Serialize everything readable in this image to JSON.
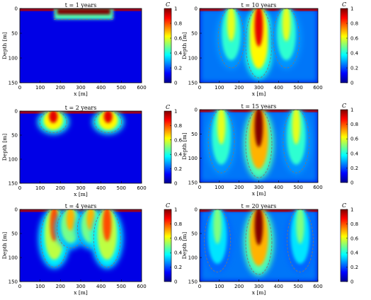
{
  "chart_data": [
    {
      "type": "heatmap",
      "title": "t = 1 years",
      "xlabel": "x [m]",
      "ylabel": "Depth [m]",
      "xlim": [
        0,
        600
      ],
      "ylim": [
        150,
        0
      ],
      "xticks": [
        "0",
        "100",
        "200",
        "300",
        "400",
        "500",
        "600"
      ],
      "yticks": [
        "0",
        "50",
        "100",
        "150"
      ],
      "colorbar": {
        "label": "C",
        "ticks": [
          "0",
          "0.2",
          "0.4",
          "0.6",
          "0.8",
          "1"
        ],
        "range": [
          0,
          1
        ]
      },
      "plumes": [
        {
          "x": 170,
          "x_end": 460,
          "depth": 22,
          "peak": 1.0
        }
      ]
    },
    {
      "type": "heatmap",
      "title": "t = 10 years",
      "xlabel": "x [m]",
      "ylabel": "Depth [m]",
      "xlim": [
        0,
        600
      ],
      "ylim": [
        150,
        0
      ],
      "xticks": [
        "0",
        "100",
        "200",
        "300",
        "400",
        "500",
        "600"
      ],
      "yticks": [
        "0",
        "50",
        "100",
        "150"
      ],
      "colorbar": {
        "label": "C",
        "ticks": [
          "0",
          "0.2",
          "0.4",
          "0.6",
          "0.8",
          "1"
        ],
        "range": [
          0,
          1
        ]
      },
      "plumes": [
        {
          "x": 300,
          "depth": 140,
          "peak": 0.9
        },
        {
          "x": 160,
          "depth": 120,
          "peak": 0.6
        },
        {
          "x": 440,
          "depth": 120,
          "peak": 0.6
        }
      ]
    },
    {
      "type": "heatmap",
      "title": "t = 2 years",
      "xlabel": "x [m]",
      "ylabel": "Depth [m]",
      "xlim": [
        0,
        600
      ],
      "ylim": [
        150,
        0
      ],
      "xticks": [
        "0",
        "100",
        "200",
        "300",
        "400",
        "500",
        "600"
      ],
      "yticks": [
        "0",
        "50",
        "100",
        "150"
      ],
      "colorbar": {
        "label": "C",
        "ticks": [
          "0",
          "0.2",
          "0.4",
          "0.6",
          "0.8",
          "1"
        ],
        "range": [
          0,
          1
        ]
      },
      "plumes": [
        {
          "x": 165,
          "depth": 45,
          "peak": 0.9
        },
        {
          "x": 435,
          "depth": 45,
          "peak": 0.9
        }
      ]
    },
    {
      "type": "heatmap",
      "title": "t = 15 years",
      "xlabel": "x [m]",
      "ylabel": "Depth [m]",
      "xlim": [
        0,
        600
      ],
      "ylim": [
        150,
        0
      ],
      "xticks": [
        "0",
        "100",
        "200",
        "300",
        "400",
        "500",
        "600"
      ],
      "yticks": [
        "0",
        "50",
        "100",
        "150"
      ],
      "colorbar": {
        "label": "C",
        "ticks": [
          "0",
          "0.2",
          "0.4",
          "0.6",
          "0.8",
          "1"
        ],
        "range": [
          0,
          1
        ]
      },
      "plumes": [
        {
          "x": 300,
          "depth": 140,
          "peak": 1.0
        },
        {
          "x": 110,
          "depth": 130,
          "peak": 0.6
        },
        {
          "x": 490,
          "depth": 130,
          "peak": 0.6
        }
      ]
    },
    {
      "type": "heatmap",
      "title": "t = 4 years",
      "xlabel": "x [m]",
      "ylabel": "Depth [m]",
      "xlim": [
        0,
        600
      ],
      "ylim": [
        150,
        0
      ],
      "xticks": [
        "0",
        "100",
        "200",
        "300",
        "400",
        "500",
        "600"
      ],
      "yticks": [
        "0",
        "50",
        "100",
        "150"
      ],
      "colorbar": {
        "label": "C",
        "ticks": [
          "0",
          "0.2",
          "0.4",
          "0.6",
          "0.8",
          "1"
        ],
        "range": [
          0,
          1
        ]
      },
      "plumes": [
        {
          "x": 170,
          "depth": 120,
          "peak": 0.8
        },
        {
          "x": 250,
          "depth": 80,
          "peak": 0.7
        },
        {
          "x": 350,
          "depth": 80,
          "peak": 0.7
        },
        {
          "x": 430,
          "depth": 120,
          "peak": 0.8
        }
      ]
    },
    {
      "type": "heatmap",
      "title": "t = 20 years",
      "xlabel": "x [m]",
      "ylabel": "Depth [m]",
      "xlim": [
        0,
        600
      ],
      "ylim": [
        150,
        0
      ],
      "xticks": [
        "0",
        "100",
        "200",
        "300",
        "400",
        "500",
        "600"
      ],
      "yticks": [
        "0",
        "50",
        "100",
        "150"
      ],
      "colorbar": {
        "label": "C",
        "ticks": [
          "0",
          "0.2",
          "0.4",
          "0.6",
          "0.8",
          "1"
        ],
        "range": [
          0,
          1
        ]
      },
      "plumes": [
        {
          "x": 300,
          "depth": 135,
          "peak": 1.0
        },
        {
          "x": 90,
          "depth": 130,
          "peak": 0.5
        },
        {
          "x": 510,
          "depth": 130,
          "peak": 0.5
        }
      ]
    }
  ]
}
